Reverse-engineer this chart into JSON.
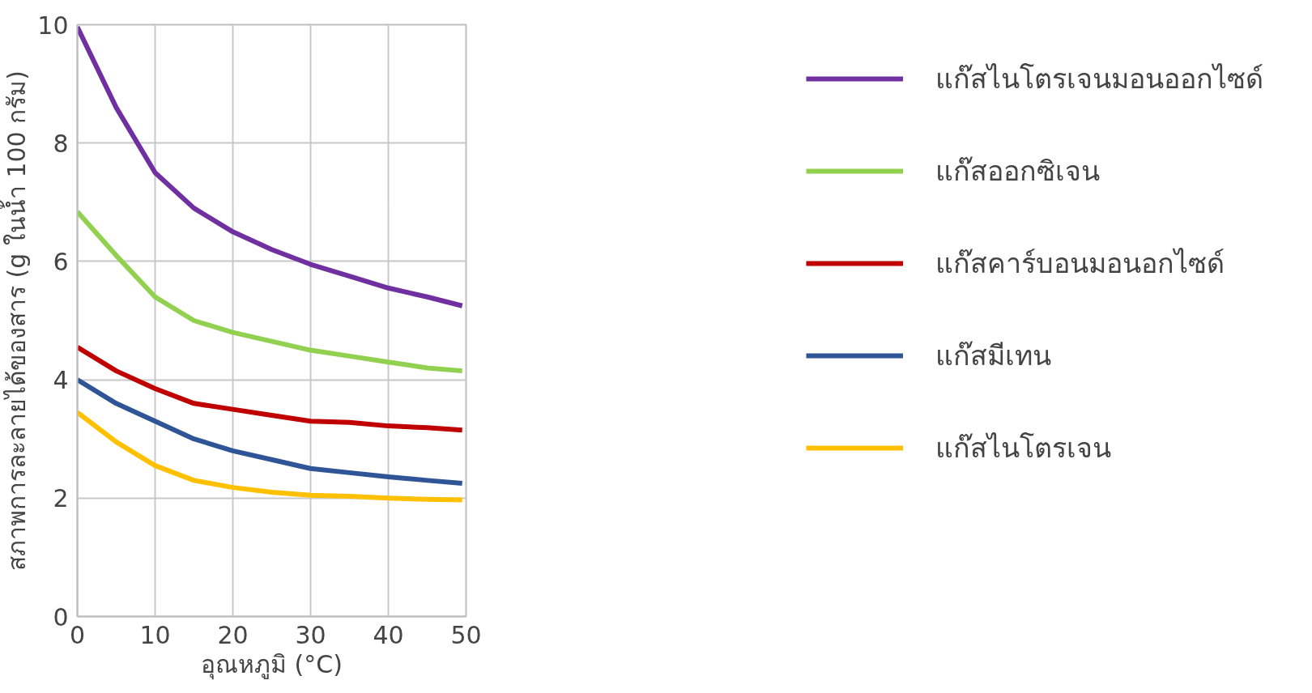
{
  "chart_data": {
    "type": "line",
    "xlabel": "อุณหภูมิ (°C)",
    "ylabel": "สภาพการละลายได้ของสาร (g ในน้ำ 100 กรัม)",
    "x": [
      0,
      5,
      10,
      15,
      20,
      25,
      30,
      35,
      40,
      45,
      49.5
    ],
    "series": [
      {
        "name": "แก๊สไนโตรเจนมอนออกไซด์",
        "color": "#7030a0",
        "values": [
          9.96,
          8.6,
          7.5,
          6.9,
          6.5,
          6.2,
          5.95,
          5.75,
          5.55,
          5.4,
          5.25
        ]
      },
      {
        "name": "แก๊สออกซิเจน",
        "color": "#92d050",
        "values": [
          6.84,
          6.1,
          5.4,
          5.0,
          4.8,
          4.65,
          4.5,
          4.4,
          4.3,
          4.2,
          4.15
        ]
      },
      {
        "name": "แก๊สคาร์บอนมอนอกไซด์",
        "color": "#c00000",
        "values": [
          4.55,
          4.15,
          3.85,
          3.6,
          3.5,
          3.4,
          3.3,
          3.28,
          3.22,
          3.19,
          3.15
        ]
      },
      {
        "name": "แก๊สมีเทน",
        "color": "#2f5597",
        "values": [
          4.0,
          3.6,
          3.3,
          3.0,
          2.8,
          2.65,
          2.5,
          2.43,
          2.36,
          2.3,
          2.25
        ]
      },
      {
        "name": "แก๊สไนโตรเจน",
        "color": "#ffc000",
        "values": [
          3.45,
          2.95,
          2.55,
          2.3,
          2.18,
          2.1,
          2.05,
          2.03,
          2.0,
          1.98,
          1.97
        ]
      }
    ],
    "xlim": [
      0,
      50
    ],
    "ylim": [
      0,
      10
    ],
    "xticks": [
      0,
      10,
      20,
      30,
      40,
      50
    ],
    "yticks": [
      0,
      2,
      4,
      6,
      8,
      10
    ],
    "grid": true,
    "legend": "right",
    "marker": "none",
    "line_style": "solid"
  }
}
